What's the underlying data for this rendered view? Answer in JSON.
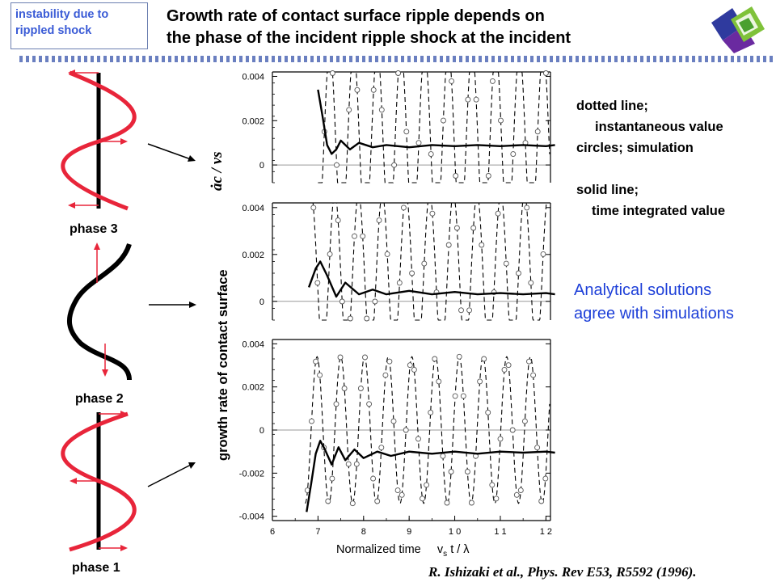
{
  "tag": {
    "line1": "instability due to",
    "line2": "rippled shock"
  },
  "title": {
    "line1": "Growth rate of contact surface ripple depends on",
    "line2": "the phase of the incident ripple shock at the incident"
  },
  "phases": {
    "p3": "phase 3",
    "p2": "phase 2",
    "p1": "phase 1"
  },
  "legend": {
    "l1": "dotted line;",
    "l2": "instantaneous value",
    "l3": "circles; simulation",
    "l4": "solid line;",
    "l5": "time integrated value"
  },
  "analytic": {
    "l1": "Analytical solutions",
    "l2": "agree with simulations"
  },
  "reference": "R. Ishizaki et al., Phys. Rev E53, R5592 (1996).",
  "axis": {
    "ylabel": "growth rate of contact surface",
    "ylabel_var": "ȧc / νs",
    "xlabel_main": "Normalized time",
    "xlabel_formula": "v",
    "xlabel_sub": "s",
    "xlabel_tail": "t / λ"
  },
  "colors": {
    "ripple": "#e8253a",
    "stripe": "#6a7fc0",
    "text_blue": "#1d3fd8",
    "tag_text": "#3a5bd6"
  },
  "chart_data": [
    {
      "type": "line",
      "panel": "top",
      "yticks": [
        "0.004",
        "0.002",
        "0"
      ],
      "ylim": [
        -0.0008,
        0.0042
      ],
      "series": [
        {
          "style": "solid",
          "x": [
            7.0,
            7.1,
            7.2,
            7.3,
            7.4,
            7.5,
            7.7,
            7.9,
            8.2,
            8.5,
            9.0,
            9.5,
            10.0,
            10.5,
            11.0,
            11.5,
            12.0,
            12.2
          ],
          "y": [
            0.0034,
            0.0022,
            0.0009,
            0.0005,
            0.0007,
            0.0011,
            0.0007,
            0.001,
            0.0008,
            0.0009,
            0.0008,
            0.0009,
            0.00085,
            0.0009,
            0.00085,
            0.0009,
            0.00085,
            0.0009
          ]
        }
      ]
    },
    {
      "type": "line",
      "panel": "middle",
      "yticks": [
        "0.004",
        "0.002",
        "0"
      ],
      "ylim": [
        -0.0008,
        0.0042
      ],
      "series": [
        {
          "style": "solid",
          "x": [
            6.8,
            6.95,
            7.05,
            7.2,
            7.4,
            7.6,
            7.9,
            8.2,
            8.5,
            9.0,
            9.5,
            10.0,
            10.5,
            11.0,
            11.5,
            12.0,
            12.2
          ],
          "y": [
            0.0006,
            0.0014,
            0.0017,
            0.0011,
            0.0002,
            0.0008,
            0.0003,
            0.0005,
            0.0003,
            0.00045,
            0.0003,
            0.0004,
            0.0003,
            0.00035,
            0.0003,
            0.00035,
            0.0003
          ]
        }
      ]
    },
    {
      "type": "line",
      "panel": "bottom",
      "yticks": [
        "0.004",
        "0.002",
        "0",
        "-0.002",
        "-0.004"
      ],
      "xticks": [
        "6",
        "7",
        "8",
        "9",
        "1 0",
        "1 1",
        "1 2"
      ],
      "xlim": [
        6,
        12
      ],
      "ylim": [
        -0.0042,
        0.0042
      ],
      "series": [
        {
          "style": "solid",
          "x": [
            6.75,
            6.85,
            6.95,
            7.05,
            7.15,
            7.3,
            7.45,
            7.6,
            7.8,
            8.0,
            8.3,
            8.6,
            9.0,
            9.5,
            10.0,
            10.5,
            11.0,
            11.5,
            12.0,
            12.2
          ],
          "y": [
            -0.0038,
            -0.0025,
            -0.0011,
            -0.0005,
            -0.0009,
            -0.0016,
            -0.0008,
            -0.0014,
            -0.0009,
            -0.0013,
            -0.001,
            -0.0012,
            -0.001,
            -0.0011,
            -0.001,
            -0.0011,
            -0.001,
            -0.00105,
            -0.001,
            -0.00105
          ]
        }
      ]
    }
  ]
}
